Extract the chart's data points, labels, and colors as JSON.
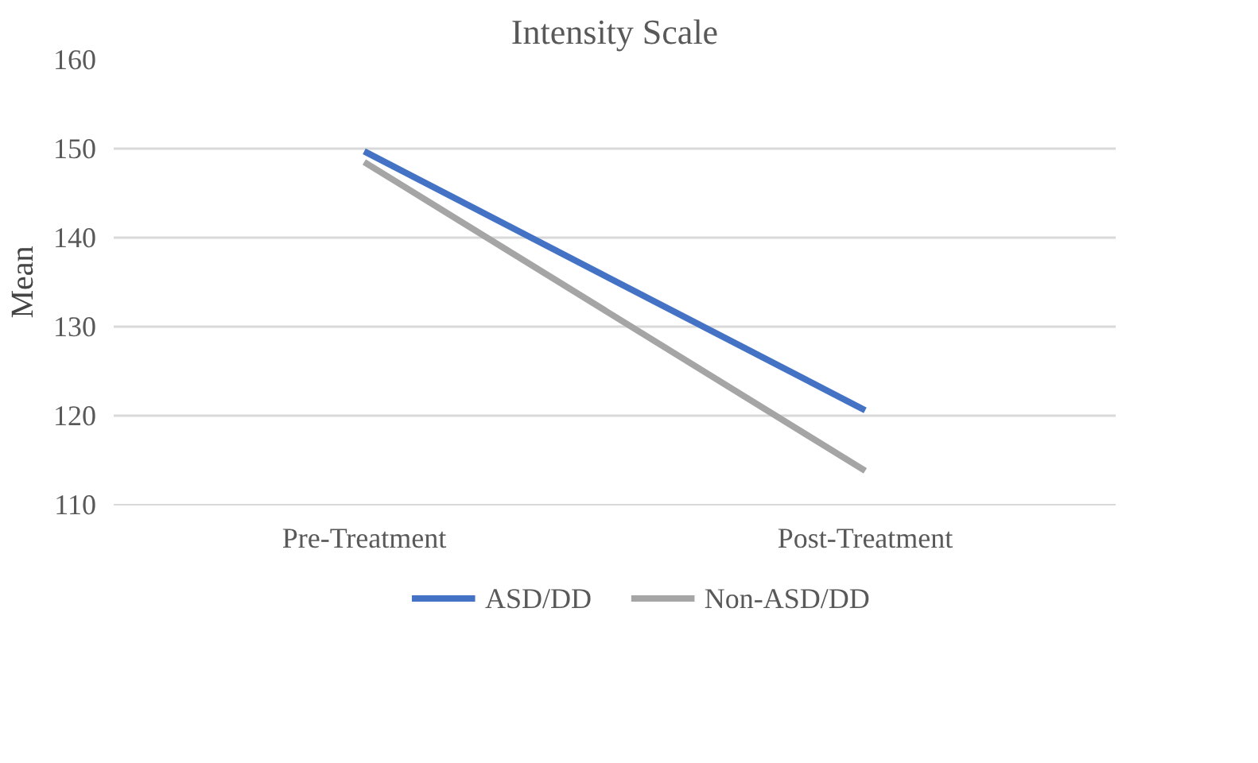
{
  "chart_data": {
    "type": "line",
    "title": "Intensity Scale",
    "ylabel": "Mean",
    "categories": [
      "Pre-Treatment",
      "Post-Treatment"
    ],
    "series": [
      {
        "name": "ASD/DD",
        "color": "#4472c4",
        "values": [
          149.7,
          120.6
        ]
      },
      {
        "name": "Non-ASD/DD",
        "color": "#a5a5a5",
        "values": [
          148.5,
          113.8
        ]
      }
    ],
    "ylim": [
      110,
      160
    ],
    "yticks": [
      110,
      120,
      130,
      140,
      150,
      160
    ],
    "grid": "y",
    "legend": "bottom",
    "marker": "none",
    "line_style": "solid"
  }
}
